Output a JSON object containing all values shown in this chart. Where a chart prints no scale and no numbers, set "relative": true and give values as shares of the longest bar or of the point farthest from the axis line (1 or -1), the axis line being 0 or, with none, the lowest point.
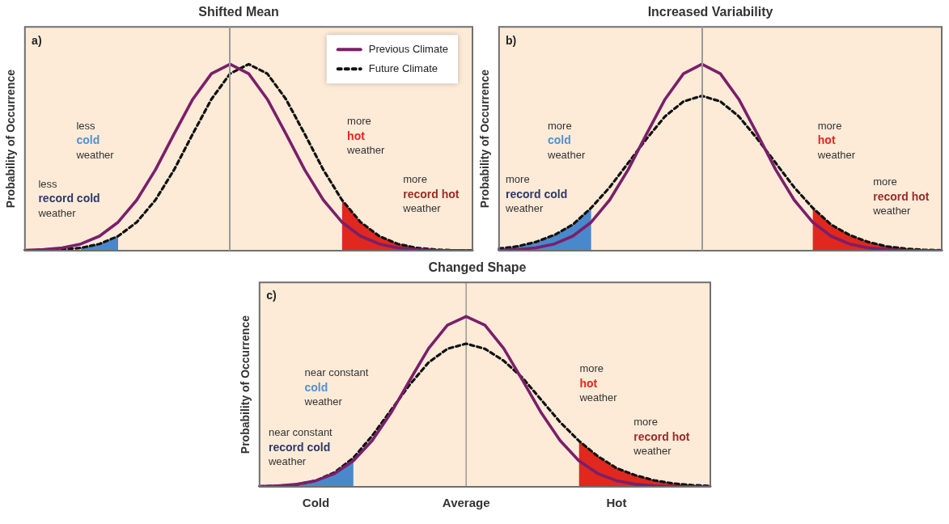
{
  "chart_data": [
    {
      "type": "line",
      "title": "Shifted Mean",
      "ylabel": "Probability of Occurrence",
      "relative": true,
      "tick_labels": false,
      "legend": "top right",
      "categories": [
        null,
        null,
        null,
        null,
        null,
        null,
        null,
        null,
        null,
        null,
        null,
        null,
        null,
        null,
        null,
        null,
        null,
        null,
        null,
        null,
        null,
        null,
        null,
        null,
        null
      ],
      "series": [
        {
          "name": "Previous Climate",
          "color": "#7b1f6a",
          "line_style": "solid",
          "values": [
            0.002,
            0.006,
            0.015,
            0.036,
            0.078,
            0.153,
            0.272,
            0.434,
            0.626,
            0.812,
            0.949,
            1,
            0.949,
            0.812,
            0.626,
            0.434,
            0.272,
            0.153,
            0.078,
            0.036,
            0.015,
            0.006,
            0.002,
            0.001,
            0
          ]
        },
        {
          "name": "Future Climate",
          "color": "#111111",
          "line_style": "dashed",
          "values": [
            0.001,
            0.002,
            0.006,
            0.015,
            0.036,
            0.078,
            0.153,
            0.272,
            0.434,
            0.626,
            0.812,
            0.949,
            1,
            0.949,
            0.812,
            0.626,
            0.434,
            0.272,
            0.153,
            0.078,
            0.036,
            0.015,
            0.006,
            0.002,
            0.001
          ]
        },
        {
          "type": "area",
          "color": "#4a88cc",
          "values": [
            null,
            null,
            null,
            0.015,
            0.036,
            0.078,
            null,
            null,
            null,
            null,
            null,
            null,
            null,
            null,
            null,
            null,
            null,
            null,
            null,
            null,
            null,
            null,
            null,
            null,
            null
          ]
        },
        {
          "type": "area",
          "color": "#e0281f",
          "values": [
            null,
            null,
            null,
            null,
            null,
            null,
            null,
            null,
            null,
            null,
            null,
            null,
            null,
            null,
            null,
            null,
            null,
            0.272,
            0.153,
            0.078,
            0.036,
            0.015,
            0.006,
            0.002,
            0.001
          ]
        },
        {
          "type": "area",
          "color": "#9e2a24",
          "values": [
            null,
            null,
            null,
            null,
            null,
            null,
            null,
            null,
            null,
            null,
            null,
            null,
            null,
            null,
            null,
            null,
            null,
            null,
            null,
            null,
            0.036,
            0.015,
            0.006,
            0.002,
            0.001
          ]
        }
      ],
      "annotations": [
        "a)",
        "less\ncold\nweather",
        "less\nrecord cold\nweather",
        "more\nhot\nweather",
        "more\nrecord hot\nweather"
      ]
    },
    {
      "type": "line",
      "title": "Increased Variability",
      "ylabel": "Probability of Occurrence",
      "relative": true,
      "tick_labels": false,
      "categories": [
        null,
        null,
        null,
        null,
        null,
        null,
        null,
        null,
        null,
        null,
        null,
        null,
        null,
        null,
        null,
        null,
        null,
        null,
        null,
        null,
        null,
        null,
        null,
        null,
        null
      ],
      "series": [
        {
          "color": "#7b1f6a",
          "line_style": "solid",
          "values": [
            0.002,
            0.006,
            0.015,
            0.036,
            0.078,
            0.153,
            0.272,
            0.434,
            0.626,
            0.812,
            0.949,
            1,
            0.949,
            0.812,
            0.626,
            0.434,
            0.272,
            0.153,
            0.078,
            0.036,
            0.015,
            0.006,
            0.002,
            0.001,
            0
          ]
        },
        {
          "color": "#111111",
          "line_style": "dashed",
          "values": [
            0.011,
            0.023,
            0.047,
            0.084,
            0.14,
            0.23,
            0.34,
            0.47,
            0.6,
            0.72,
            0.8,
            0.83,
            0.8,
            0.72,
            0.6,
            0.47,
            0.34,
            0.23,
            0.14,
            0.084,
            0.047,
            0.023,
            0.011,
            0.005,
            0.002
          ]
        },
        {
          "type": "area",
          "color": "#4a88cc",
          "values": [
            0.011,
            0.023,
            0.047,
            0.084,
            0.14,
            0.23,
            null,
            null,
            null,
            null,
            null,
            null,
            null,
            null,
            null,
            null,
            null,
            null,
            null,
            null,
            null,
            null,
            null,
            null,
            null
          ]
        },
        {
          "type": "area",
          "color": "#e0281f",
          "values": [
            null,
            null,
            null,
            null,
            null,
            null,
            null,
            null,
            null,
            null,
            null,
            null,
            null,
            null,
            null,
            null,
            null,
            0.23,
            0.14,
            0.084,
            0.047,
            0.023,
            0.011,
            0.005,
            0.002
          ]
        },
        {
          "type": "area",
          "color": "#9e2a24",
          "values": [
            null,
            null,
            null,
            null,
            null,
            null,
            null,
            null,
            null,
            null,
            null,
            null,
            null,
            null,
            null,
            null,
            null,
            null,
            null,
            null,
            0.047,
            0.023,
            0.011,
            0.005,
            0.002
          ]
        }
      ],
      "annotations": [
        "b)",
        "more\ncold\nweather",
        "more\nrecord cold\nweather",
        "more\nhot\nweather",
        "more\nrecord hot\nweather"
      ]
    },
    {
      "type": "line",
      "title": "Changed Shape",
      "ylabel": "Probability of Occurrence",
      "relative": true,
      "tick_labels": "x",
      "categories": [
        null,
        null,
        null,
        "Cold",
        null,
        null,
        null,
        null,
        null,
        null,
        null,
        "Average",
        null,
        null,
        null,
        null,
        null,
        null,
        null,
        "Hot",
        null,
        null,
        null,
        null,
        null
      ],
      "series": [
        {
          "color": "#7b1f6a",
          "line_style": "solid",
          "values": [
            0.002,
            0.006,
            0.015,
            0.036,
            0.078,
            0.153,
            0.272,
            0.434,
            0.626,
            0.812,
            0.949,
            1,
            0.949,
            0.812,
            0.626,
            0.434,
            0.272,
            0.153,
            0.078,
            0.036,
            0.015,
            0.006,
            0.002,
            0.001,
            0
          ]
        },
        {
          "color": "#111111",
          "line_style": "dashed",
          "values": [
            0.002,
            0.005,
            0.014,
            0.036,
            0.085,
            0.17,
            0.3,
            0.45,
            0.6,
            0.73,
            0.81,
            0.84,
            0.81,
            0.74,
            0.64,
            0.51,
            0.38,
            0.27,
            0.18,
            0.11,
            0.068,
            0.038,
            0.02,
            0.01,
            0.005
          ]
        },
        {
          "type": "area",
          "color": "#4a88cc",
          "values": [
            0.002,
            0.005,
            0.014,
            0.036,
            0.085,
            0.17,
            null,
            null,
            null,
            null,
            null,
            null,
            null,
            null,
            null,
            null,
            null,
            null,
            null,
            null,
            null,
            null,
            null,
            null,
            null
          ]
        },
        {
          "type": "area",
          "color": "#e0281f",
          "values": [
            null,
            null,
            null,
            null,
            null,
            null,
            null,
            null,
            null,
            null,
            null,
            null,
            null,
            null,
            null,
            null,
            null,
            0.27,
            0.18,
            0.11,
            0.068,
            0.038,
            0.02,
            0.01,
            0.005
          ]
        },
        {
          "type": "area",
          "color": "#9e2a24",
          "values": [
            null,
            null,
            null,
            null,
            null,
            null,
            null,
            null,
            null,
            null,
            null,
            null,
            null,
            null,
            null,
            null,
            null,
            null,
            null,
            0.11,
            0.068,
            0.038,
            0.02,
            0.01,
            0.005
          ]
        }
      ],
      "ref_lines": [
        {
          "axis": "x",
          "value": "Average",
          "color": "#999999"
        }
      ],
      "annotations": [
        "c)",
        "near constant\ncold\nweather",
        "near constant\nrecord cold\nweather",
        "more\nhot\nweather",
        "more\nrecord hot\nweather"
      ]
    }
  ]
}
